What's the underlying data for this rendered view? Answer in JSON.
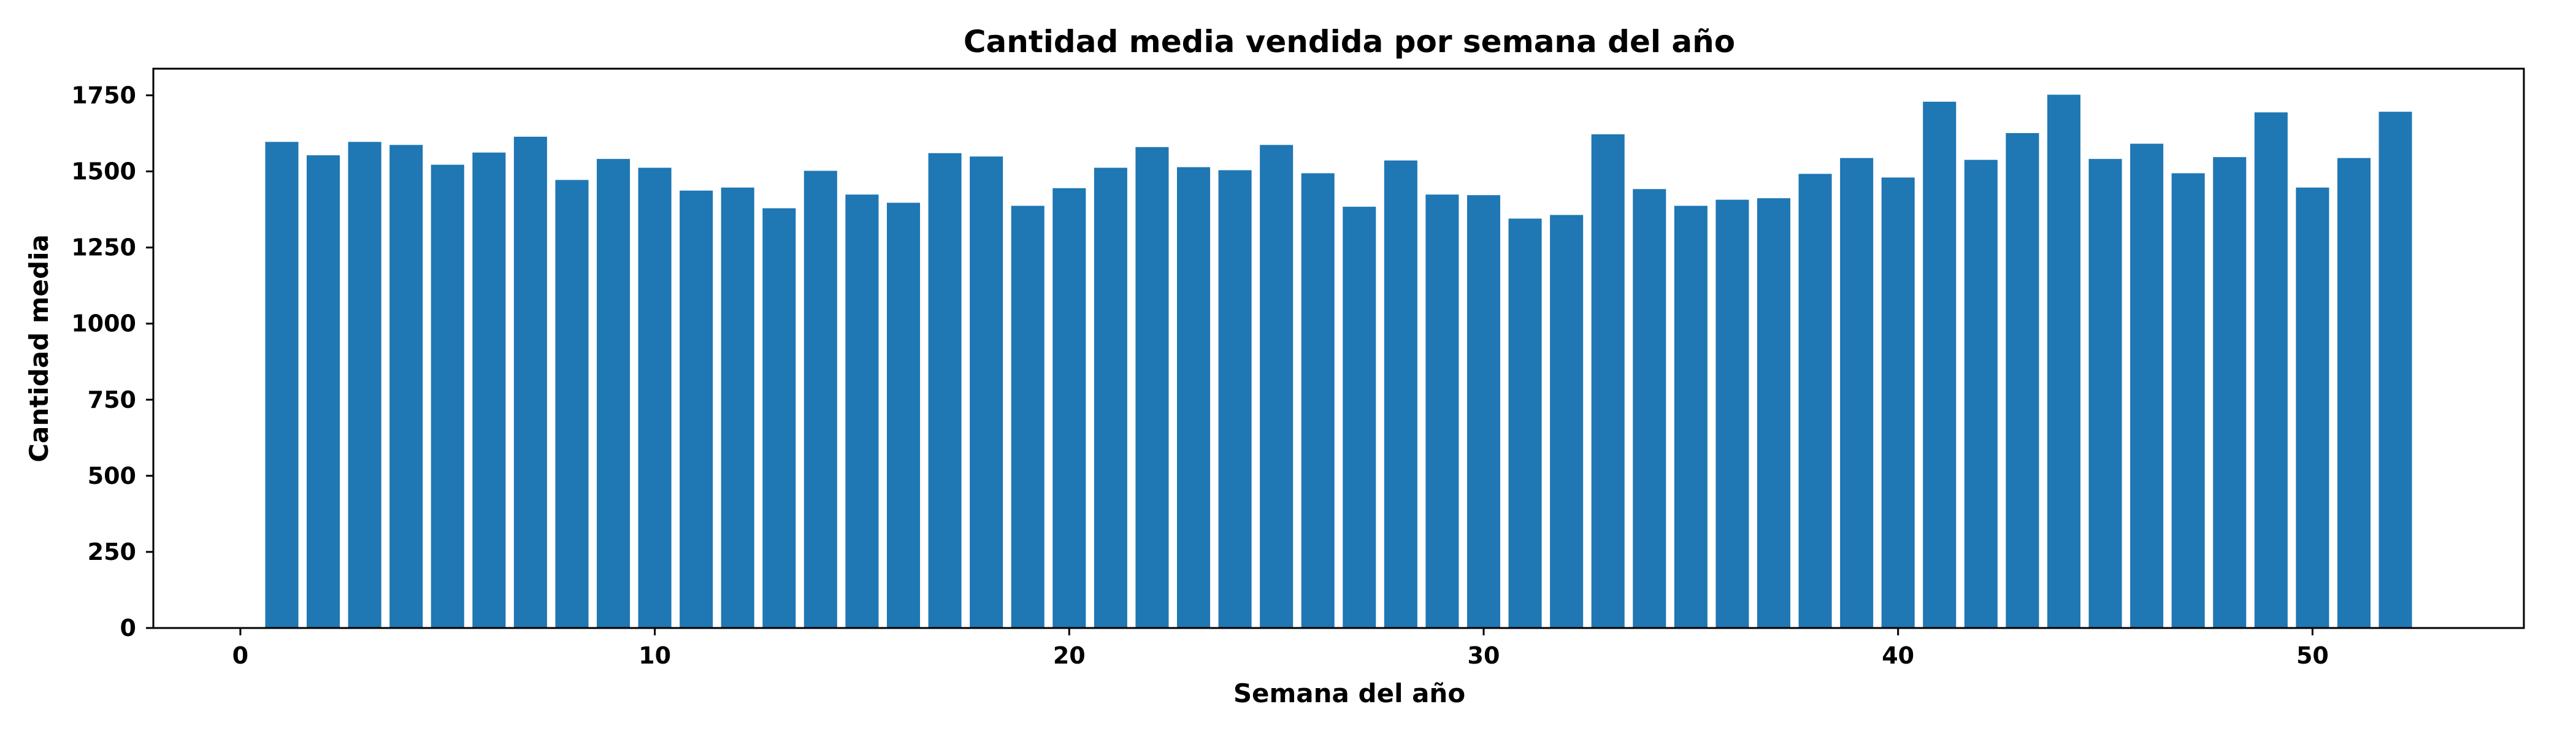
{
  "chart_data": {
    "type": "bar",
    "title": "Cantidad media vendida por semana del año",
    "xlabel": "Semana del año",
    "ylabel": "Cantidad media",
    "xlim": [
      -2.1,
      55.1
    ],
    "ylim": [
      0,
      1837.5
    ],
    "xticks": [
      0,
      10,
      20,
      30,
      40,
      50
    ],
    "yticks": [
      0,
      250,
      500,
      750,
      1000,
      1250,
      1500,
      1750
    ],
    "grid": false,
    "color": "#1f77b4",
    "categories": [
      1,
      2,
      3,
      4,
      5,
      6,
      7,
      8,
      9,
      10,
      11,
      12,
      13,
      14,
      15,
      16,
      17,
      18,
      19,
      20,
      21,
      22,
      23,
      24,
      25,
      26,
      27,
      28,
      29,
      30,
      31,
      32,
      33,
      34,
      35,
      36,
      37,
      38,
      39,
      40,
      41,
      42,
      43,
      44,
      45,
      46,
      47,
      48,
      49,
      50,
      51,
      52
    ],
    "values": [
      1597,
      1553,
      1597,
      1587,
      1522,
      1562,
      1614,
      1472,
      1541,
      1512,
      1437,
      1447,
      1379,
      1502,
      1424,
      1397,
      1560,
      1549,
      1387,
      1445,
      1512,
      1580,
      1514,
      1504,
      1587,
      1494,
      1384,
      1536,
      1424,
      1422,
      1345,
      1357,
      1622,
      1442,
      1387,
      1407,
      1412,
      1492,
      1544,
      1480,
      1729,
      1538,
      1626,
      1752,
      1541,
      1591,
      1494,
      1547,
      1694,
      1447,
      1544,
      1696
    ]
  }
}
